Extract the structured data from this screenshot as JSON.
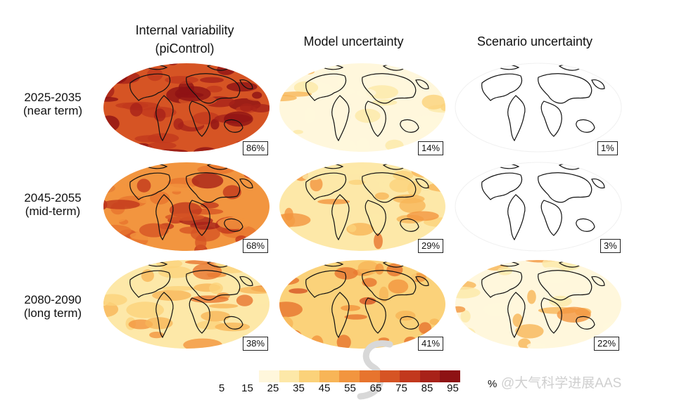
{
  "columns": [
    {
      "line1": "Internal variability",
      "line2": "(piControl)"
    },
    {
      "line1": "Model uncertainty",
      "line2": ""
    },
    {
      "line1": "Scenario uncertainty",
      "line2": ""
    }
  ],
  "rows": [
    {
      "period": "2025-2035",
      "term": "(near term)"
    },
    {
      "period": "2045-2055",
      "term": "(mid-term)"
    },
    {
      "period": "2080-2090",
      "term": "(long term)"
    }
  ],
  "panels": [
    [
      {
        "percent": "86%",
        "level": 0.86
      },
      {
        "percent": "14%",
        "level": 0.14
      },
      {
        "percent": "1%",
        "level": 0.01
      }
    ],
    [
      {
        "percent": "68%",
        "level": 0.68
      },
      {
        "percent": "29%",
        "level": 0.29
      },
      {
        "percent": "3%",
        "level": 0.03
      }
    ],
    [
      {
        "percent": "38%",
        "level": 0.38
      },
      {
        "percent": "41%",
        "level": 0.41
      },
      {
        "percent": "22%",
        "level": 0.22
      }
    ]
  ],
  "colorbar": {
    "ticks": [
      "5",
      "15",
      "25",
      "35",
      "45",
      "55",
      "65",
      "75",
      "85",
      "95"
    ],
    "unit": "%",
    "colors": [
      "#fff7dc",
      "#fde8a8",
      "#fbd27a",
      "#f8b557",
      "#f2953f",
      "#e7742e",
      "#d65424",
      "#c2381d",
      "#a82219",
      "#8e1214"
    ]
  },
  "watermark": "@大气科学进展AAS"
}
